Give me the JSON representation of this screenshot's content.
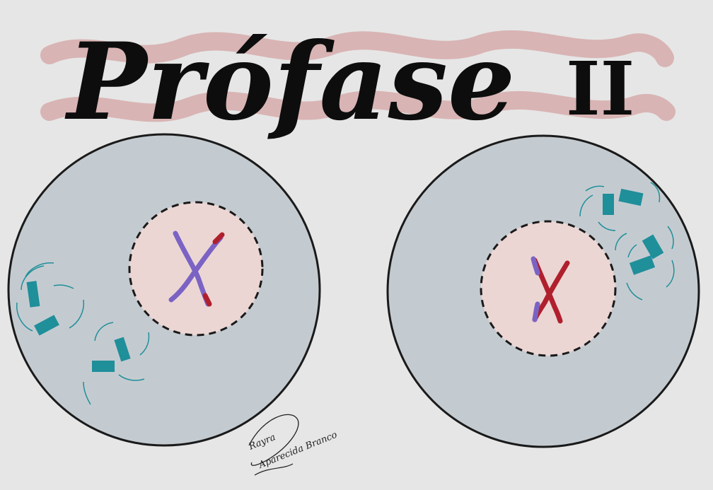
{
  "title": {
    "main": "Prófase",
    "numeral": "II"
  },
  "signature": {
    "line1": "Rayra",
    "line2": "Aparecida Branco"
  },
  "colors": {
    "background": "#e6e6e6",
    "cell_fill": "#c4cbd0",
    "cell_stroke": "#1a1a1a",
    "nucleus_fill": "#ecd6d4",
    "title_underline": "#d7aeae",
    "chromosome_purple": "#7b63c4",
    "chromosome_red": "#b01f2c",
    "centrosome": "#1f8f9a"
  },
  "cells": [
    {
      "id": "left",
      "chromosome_main_color": "purple",
      "chromosome_tip_color": "red"
    },
    {
      "id": "right",
      "chromosome_main_color": "red",
      "chromosome_tip_color": "purple"
    }
  ]
}
